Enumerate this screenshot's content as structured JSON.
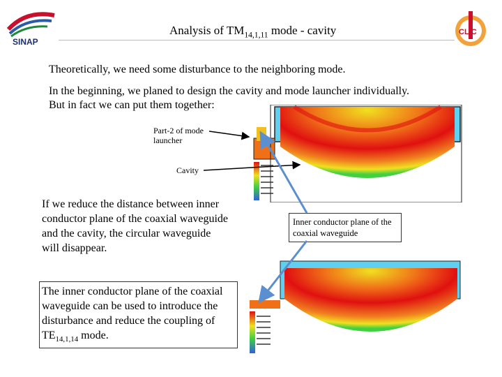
{
  "header": {
    "logo_left_text": "SINAP",
    "logo_right_text": "CLIC",
    "title_prefix": "Analysis of TM",
    "title_sub": "14,1,11",
    "title_suffix": " mode - cavity"
  },
  "body": {
    "line1": "Theoretically, we need some disturbance to the neighboring mode.",
    "line2": "In the beginning, we planed to design the cavity and mode launcher individually.",
    "line3": "But in fact we can put them together:"
  },
  "labels": {
    "part2": "Part-2 of mode launcher",
    "cavity": "Cavity",
    "inner_conductor": "Inner conductor plane of the coaxial waveguide"
  },
  "text_blocks": {
    "reduce": "If we reduce the distance between inner conductor plane of the coaxial waveguide and the cavity, the circular waveguide will disappear.",
    "inner_prefix": "The inner conductor plane of the coaxial waveguide can be used to introduce the disturbance and reduce the coupling of TE",
    "inner_sub": "14,1,14",
    "inner_suffix": " mode."
  },
  "colors": {
    "title_rule": "#d8c24a",
    "arrow": "#5b8fd0",
    "field_red": "#e01010",
    "field_yellow": "#f0e020",
    "field_green": "#40d040",
    "field_blue": "#3060e0"
  }
}
